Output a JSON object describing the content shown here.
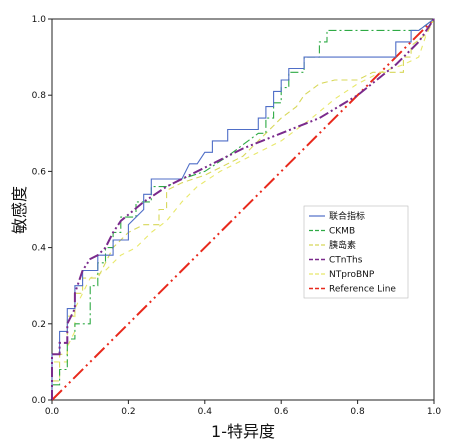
{
  "chart_data": {
    "type": "line",
    "xlabel": "1-特异度",
    "ylabel": "敏感度",
    "xlim": [
      0,
      1
    ],
    "ylim": [
      0,
      1
    ],
    "x_ticks": [
      "0.0",
      "0.2",
      "0.4",
      "0.6",
      "0.8",
      "1.0"
    ],
    "y_ticks": [
      "0.0",
      "0.2",
      "0.4",
      "0.6",
      "0.8",
      "1.0"
    ],
    "grid": false,
    "legend_position": "right-middle",
    "series": [
      {
        "name": "联合指标",
        "color": "#4F6EC7",
        "dash": "solid",
        "points": [
          [
            0,
            0
          ],
          [
            0,
            0.12
          ],
          [
            0.02,
            0.12
          ],
          [
            0.02,
            0.18
          ],
          [
            0.04,
            0.18
          ],
          [
            0.04,
            0.24
          ],
          [
            0.06,
            0.24
          ],
          [
            0.06,
            0.3
          ],
          [
            0.08,
            0.3
          ],
          [
            0.08,
            0.34
          ],
          [
            0.12,
            0.34
          ],
          [
            0.12,
            0.38
          ],
          [
            0.16,
            0.38
          ],
          [
            0.16,
            0.42
          ],
          [
            0.2,
            0.42
          ],
          [
            0.2,
            0.46
          ],
          [
            0.24,
            0.5
          ],
          [
            0.24,
            0.54
          ],
          [
            0.26,
            0.54
          ],
          [
            0.26,
            0.58
          ],
          [
            0.3,
            0.58
          ],
          [
            0.32,
            0.58
          ],
          [
            0.34,
            0.58
          ],
          [
            0.36,
            0.62
          ],
          [
            0.38,
            0.62
          ],
          [
            0.4,
            0.65
          ],
          [
            0.42,
            0.65
          ],
          [
            0.42,
            0.68
          ],
          [
            0.46,
            0.68
          ],
          [
            0.46,
            0.71
          ],
          [
            0.54,
            0.71
          ],
          [
            0.54,
            0.74
          ],
          [
            0.56,
            0.74
          ],
          [
            0.56,
            0.77
          ],
          [
            0.58,
            0.77
          ],
          [
            0.58,
            0.81
          ],
          [
            0.6,
            0.81
          ],
          [
            0.6,
            0.84
          ],
          [
            0.62,
            0.84
          ],
          [
            0.62,
            0.87
          ],
          [
            0.66,
            0.87
          ],
          [
            0.66,
            0.9
          ],
          [
            0.9,
            0.9
          ],
          [
            0.9,
            0.94
          ],
          [
            0.94,
            0.94
          ],
          [
            0.94,
            0.97
          ],
          [
            0.96,
            0.97
          ],
          [
            1,
            1
          ]
        ]
      },
      {
        "name": "CKMB",
        "color": "#2EAA44",
        "dash": "8 3 2 3",
        "points": [
          [
            0,
            0
          ],
          [
            0,
            0.04
          ],
          [
            0.02,
            0.04
          ],
          [
            0.02,
            0.08
          ],
          [
            0.04,
            0.08
          ],
          [
            0.04,
            0.16
          ],
          [
            0.06,
            0.16
          ],
          [
            0.06,
            0.2
          ],
          [
            0.1,
            0.2
          ],
          [
            0.1,
            0.3
          ],
          [
            0.12,
            0.3
          ],
          [
            0.12,
            0.36
          ],
          [
            0.14,
            0.36
          ],
          [
            0.14,
            0.4
          ],
          [
            0.16,
            0.4
          ],
          [
            0.16,
            0.44
          ],
          [
            0.18,
            0.44
          ],
          [
            0.18,
            0.48
          ],
          [
            0.22,
            0.48
          ],
          [
            0.22,
            0.52
          ],
          [
            0.26,
            0.52
          ],
          [
            0.26,
            0.56
          ],
          [
            0.3,
            0.56
          ],
          [
            0.34,
            0.58
          ],
          [
            0.4,
            0.6
          ],
          [
            0.46,
            0.64
          ],
          [
            0.5,
            0.67
          ],
          [
            0.54,
            0.7
          ],
          [
            0.56,
            0.7
          ],
          [
            0.56,
            0.74
          ],
          [
            0.58,
            0.74
          ],
          [
            0.58,
            0.78
          ],
          [
            0.6,
            0.78
          ],
          [
            0.6,
            0.82
          ],
          [
            0.62,
            0.82
          ],
          [
            0.62,
            0.86
          ],
          [
            0.66,
            0.86
          ],
          [
            0.66,
            0.9
          ],
          [
            0.7,
            0.9
          ],
          [
            0.7,
            0.94
          ],
          [
            0.72,
            0.94
          ],
          [
            0.72,
            0.97
          ],
          [
            0.96,
            0.97
          ],
          [
            1,
            1
          ]
        ]
      },
      {
        "name": "胰岛素",
        "color": "#D8D85A",
        "dash": "6 4",
        "points": [
          [
            0,
            0
          ],
          [
            0,
            0.05
          ],
          [
            0.02,
            0.05
          ],
          [
            0.02,
            0.12
          ],
          [
            0.04,
            0.12
          ],
          [
            0.04,
            0.22
          ],
          [
            0.06,
            0.22
          ],
          [
            0.06,
            0.28
          ],
          [
            0.08,
            0.28
          ],
          [
            0.08,
            0.32
          ],
          [
            0.12,
            0.32
          ],
          [
            0.14,
            0.36
          ],
          [
            0.16,
            0.4
          ],
          [
            0.18,
            0.42
          ],
          [
            0.2,
            0.44
          ],
          [
            0.24,
            0.46
          ],
          [
            0.28,
            0.46
          ],
          [
            0.28,
            0.5
          ],
          [
            0.3,
            0.5
          ],
          [
            0.3,
            0.55
          ],
          [
            0.34,
            0.57
          ],
          [
            0.4,
            0.59
          ],
          [
            0.46,
            0.62
          ],
          [
            0.5,
            0.64
          ],
          [
            0.54,
            0.68
          ],
          [
            0.56,
            0.7
          ],
          [
            0.6,
            0.74
          ],
          [
            0.64,
            0.77
          ],
          [
            0.66,
            0.8
          ],
          [
            0.7,
            0.83
          ],
          [
            0.74,
            0.84
          ],
          [
            0.8,
            0.84
          ],
          [
            0.84,
            0.86
          ],
          [
            0.92,
            0.86
          ],
          [
            0.92,
            0.9
          ],
          [
            0.94,
            0.9
          ],
          [
            0.94,
            0.93
          ],
          [
            0.98,
            0.96
          ],
          [
            1,
            1
          ]
        ]
      },
      {
        "name": "CTnThs",
        "color": "#7A2A8C",
        "dash": "10 3 2 3 2 3",
        "points": [
          [
            0,
            0
          ],
          [
            0,
            0.12
          ],
          [
            0.02,
            0.12
          ],
          [
            0.02,
            0.15
          ],
          [
            0.04,
            0.15
          ],
          [
            0.04,
            0.2
          ],
          [
            0.06,
            0.24
          ],
          [
            0.06,
            0.28
          ],
          [
            0.08,
            0.34
          ],
          [
            0.1,
            0.37
          ],
          [
            0.12,
            0.38
          ],
          [
            0.14,
            0.4
          ],
          [
            0.16,
            0.44
          ],
          [
            0.18,
            0.47
          ],
          [
            0.24,
            0.52
          ],
          [
            0.3,
            0.56
          ],
          [
            0.36,
            0.59
          ],
          [
            0.42,
            0.62
          ],
          [
            0.5,
            0.66
          ],
          [
            0.6,
            0.7
          ],
          [
            0.7,
            0.74
          ],
          [
            0.8,
            0.8
          ],
          [
            0.9,
            0.88
          ],
          [
            0.96,
            0.94
          ],
          [
            1,
            1
          ]
        ]
      },
      {
        "name": "NTproBNP",
        "color": "#E8E86A",
        "dash": "5 5",
        "points": [
          [
            0,
            0
          ],
          [
            0,
            0.1
          ],
          [
            0.04,
            0.1
          ],
          [
            0.04,
            0.14
          ],
          [
            0.06,
            0.18
          ],
          [
            0.06,
            0.24
          ],
          [
            0.08,
            0.28
          ],
          [
            0.1,
            0.32
          ],
          [
            0.14,
            0.34
          ],
          [
            0.16,
            0.36
          ],
          [
            0.18,
            0.38
          ],
          [
            0.22,
            0.4
          ],
          [
            0.26,
            0.44
          ],
          [
            0.3,
            0.47
          ],
          [
            0.34,
            0.52
          ],
          [
            0.38,
            0.56
          ],
          [
            0.44,
            0.6
          ],
          [
            0.52,
            0.64
          ],
          [
            0.6,
            0.68
          ],
          [
            0.68,
            0.74
          ],
          [
            0.74,
            0.79
          ],
          [
            0.8,
            0.83
          ],
          [
            0.86,
            0.86
          ],
          [
            0.92,
            0.88
          ],
          [
            0.96,
            0.9
          ],
          [
            0.98,
            0.96
          ],
          [
            1,
            1
          ]
        ]
      },
      {
        "name": "Reference Line",
        "color": "#E8291C",
        "dash": "14 4 2 4 2 4",
        "points": [
          [
            0,
            0
          ],
          [
            1,
            1
          ]
        ]
      }
    ]
  }
}
